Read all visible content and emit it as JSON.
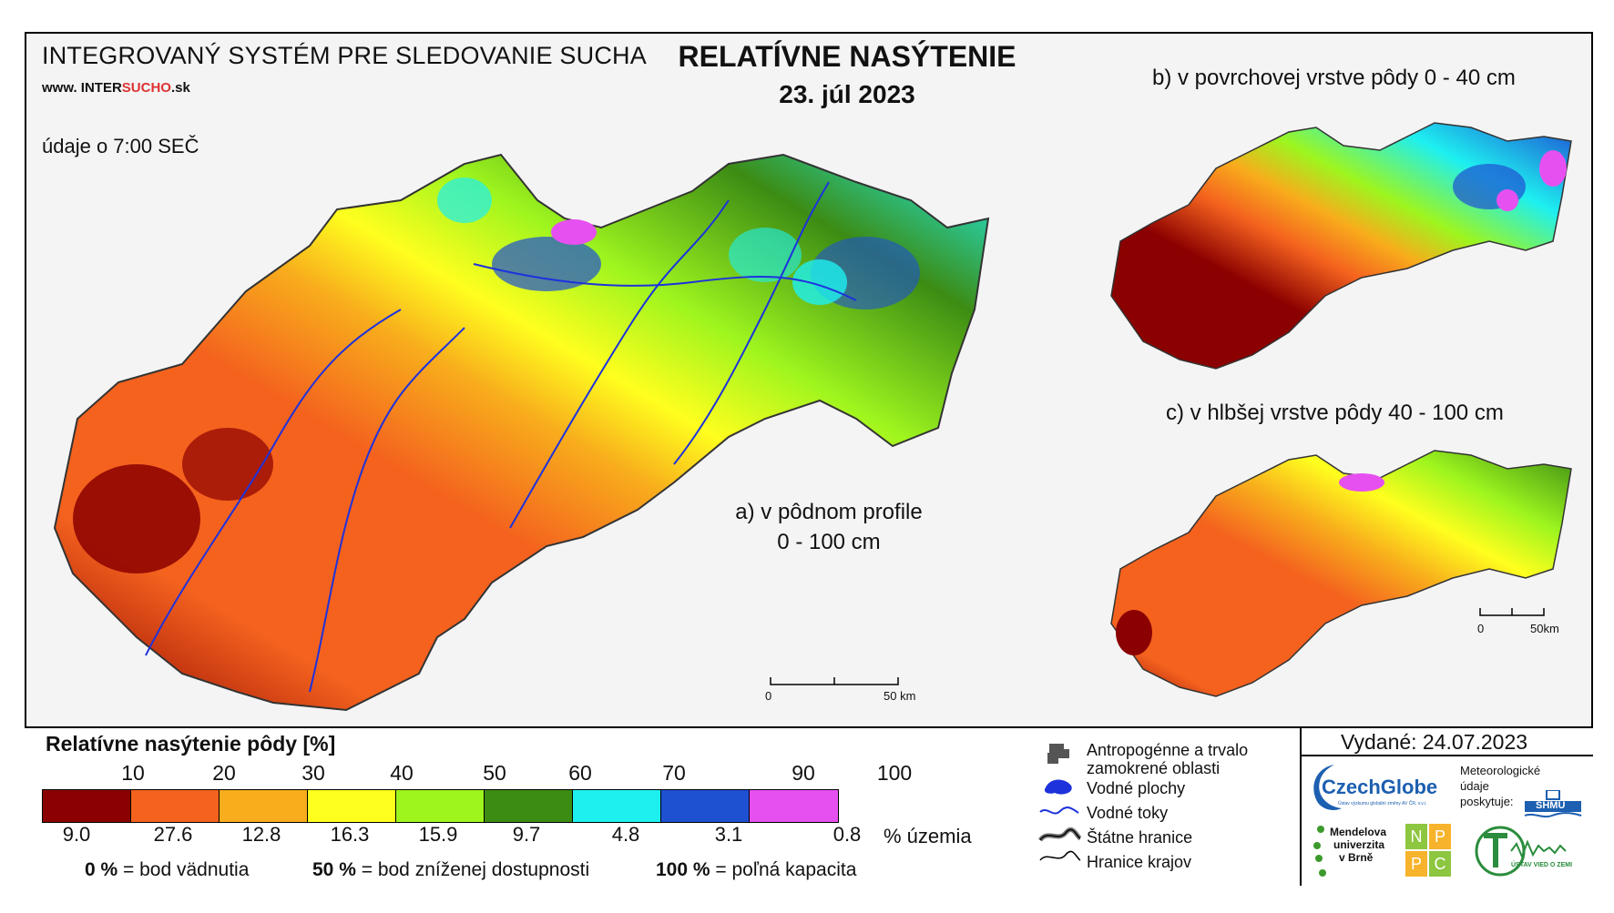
{
  "header": {
    "system_title": "INTEGROVANÝ SYSTÉM PRE SLEDOVANIE SUCHA",
    "url_prefix": "www. INTER",
    "url_highlight": "SUCHO",
    "url_suffix": ".sk",
    "time_note": "údaje o 7:00 SEČ",
    "main_title": "RELATÍVNE NASÝTENIE",
    "date": "23. júl 2023"
  },
  "maps": {
    "a_label_line1": "a) v pôdnom profile",
    "a_label_line2": "0 - 100 cm",
    "b_label": "b) v povrchovej vrstve pôdy 0 - 40 cm",
    "c_label": "c) v hlbšej vrstve pôdy 40 - 100 cm",
    "scale_main_start": "0",
    "scale_main_end": "50 km",
    "scale_small_start": "0",
    "scale_small_end": "50km"
  },
  "legend": {
    "title": "Relatívne nasýtenie pôdy [%]",
    "ticks": [
      "10",
      "20",
      "30",
      "40",
      "50",
      "60",
      "70",
      "90",
      "100"
    ],
    "classes": [
      {
        "color": "#8b0000",
        "pct": "9.0"
      },
      {
        "color": "#f4621e",
        "pct": "27.6"
      },
      {
        "color": "#f8ad1c",
        "pct": "12.8"
      },
      {
        "color": "#ffff1e",
        "pct": "16.3"
      },
      {
        "color": "#9ef51e",
        "pct": "15.9"
      },
      {
        "color": "#3c8c14",
        "pct": "9.7"
      },
      {
        "color": "#1ef0f0",
        "pct": "4.8"
      },
      {
        "color": "#1e50d2",
        "pct": "3.1"
      },
      {
        "color": "#e650f0",
        "pct": "0.8"
      }
    ],
    "pct_suffix": "% územia",
    "def1_bold": "0 %",
    "def1_text": "= bod vädnutia",
    "def2_bold": "50 %",
    "def2_text": "= bod zníženej dostupnosti",
    "def3_bold": "100 %",
    "def3_text": "= poľná kapacita"
  },
  "symbols": {
    "anthro_line1": "Antropogénne a trvalo",
    "anthro_line2": "zamokrené oblasti",
    "water_areas": "Vodné plochy",
    "water_streams": "Vodné toky",
    "state_border": "Štátne hranice",
    "region_border": "Hranice krajov"
  },
  "issued": {
    "label": "Vydané: 24.07.2023"
  },
  "logos": {
    "czechglobe": "CzechGlobe",
    "czechglobe_sub": "Ústav výzkumu globální změny AV ČR, v.v.i.",
    "meteo_line1": "Meteorologické",
    "meteo_line2": "údaje",
    "meteo_line3": "poskytuje:",
    "shmu": "SHMÚ",
    "mendel_line1": "Mendelova",
    "mendel_line2": "univerzita",
    "mendel_line3": "v Brně",
    "nppc_letters": [
      "N",
      "P",
      "P",
      "C"
    ],
    "uvz": "ÚSTAV VIED O ZEMI"
  },
  "colors": {
    "frame_bg": "#f4f4f4",
    "water": "#1e32dc"
  }
}
